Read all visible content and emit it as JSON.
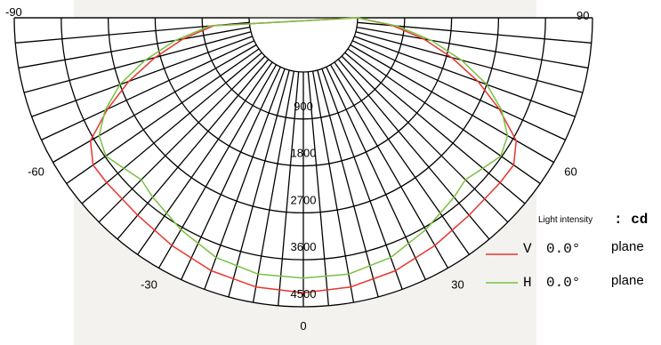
{
  "chart_data": {
    "type": "polar",
    "angle_ticks": [
      "-90",
      "90",
      "-60",
      "60",
      "-30",
      "30",
      "0"
    ],
    "angle_tick_values": [
      -90,
      90,
      -60,
      60,
      -30,
      30,
      0
    ],
    "radial_ticks": [
      "900",
      "1800",
      "2700",
      "3600",
      "4500"
    ],
    "radial_tick_values": [
      900,
      1800,
      2700,
      3600,
      4500
    ],
    "rlim": [
      0,
      4500
    ],
    "unit_label": "Light intensity",
    "unit": ": cd",
    "series": [
      {
        "name": "V 0.0°",
        "symbol": "V",
        "value_label": "0.0°",
        "suffix": "plane",
        "color": "#e8352d",
        "points": [
          {
            "angle": 0,
            "value": 4230
          },
          {
            "angle": 10,
            "value": 4200
          },
          {
            "angle": 20,
            "value": 4120
          },
          {
            "angle": 30,
            "value": 4000
          },
          {
            "angle": 40,
            "value": 3900
          },
          {
            "angle": 50,
            "value": 3880
          },
          {
            "angle": 55,
            "value": 3880
          },
          {
            "angle": 60,
            "value": 3670
          },
          {
            "angle": 65,
            "value": 3100
          },
          {
            "angle": 70,
            "value": 2520
          },
          {
            "angle": 75,
            "value": 1900
          },
          {
            "angle": 80,
            "value": 1300
          },
          {
            "angle": 85,
            "value": 680
          },
          {
            "angle": 90,
            "value": 0
          },
          {
            "angle": -10,
            "value": 4200
          },
          {
            "angle": -20,
            "value": 4120
          },
          {
            "angle": -30,
            "value": 4000
          },
          {
            "angle": -40,
            "value": 3900
          },
          {
            "angle": -50,
            "value": 3880
          },
          {
            "angle": -55,
            "value": 3880
          },
          {
            "angle": -60,
            "value": 3670
          },
          {
            "angle": -65,
            "value": 3100
          },
          {
            "angle": -70,
            "value": 2520
          },
          {
            "angle": -75,
            "value": 1900
          },
          {
            "angle": -80,
            "value": 1300
          },
          {
            "angle": -85,
            "value": 680
          }
        ]
      },
      {
        "name": "H 0.0°",
        "symbol": "H",
        "value_label": "0.0°",
        "suffix": "plane",
        "color": "#79c142",
        "points": [
          {
            "angle": 0,
            "value": 3950
          },
          {
            "angle": 10,
            "value": 3950
          },
          {
            "angle": 20,
            "value": 3850
          },
          {
            "angle": 30,
            "value": 3650
          },
          {
            "angle": 40,
            "value": 3450
          },
          {
            "angle": 45,
            "value": 3350
          },
          {
            "angle": 50,
            "value": 3450
          },
          {
            "angle": 55,
            "value": 3580
          },
          {
            "angle": 60,
            "value": 3480
          },
          {
            "angle": 65,
            "value": 3150
          },
          {
            "angle": 70,
            "value": 2700
          },
          {
            "angle": 75,
            "value": 2100
          },
          {
            "angle": 80,
            "value": 1450
          },
          {
            "angle": 85,
            "value": 760
          },
          {
            "angle": 90,
            "value": 0
          },
          {
            "angle": -10,
            "value": 3950
          },
          {
            "angle": -20,
            "value": 3850
          },
          {
            "angle": -30,
            "value": 3650
          },
          {
            "angle": -40,
            "value": 3450
          },
          {
            "angle": -45,
            "value": 3350
          },
          {
            "angle": -50,
            "value": 3450
          },
          {
            "angle": -55,
            "value": 3580
          },
          {
            "angle": -60,
            "value": 3480
          },
          {
            "angle": -65,
            "value": 3150
          },
          {
            "angle": -70,
            "value": 2700
          },
          {
            "angle": -75,
            "value": 2100
          },
          {
            "angle": -80,
            "value": 1450
          },
          {
            "angle": -85,
            "value": 760
          }
        ]
      }
    ],
    "grid": true,
    "legend": "bottom-right"
  },
  "colors": {
    "page": "#ffffff",
    "panel": "#f3f2ee",
    "grid": "#000000"
  }
}
